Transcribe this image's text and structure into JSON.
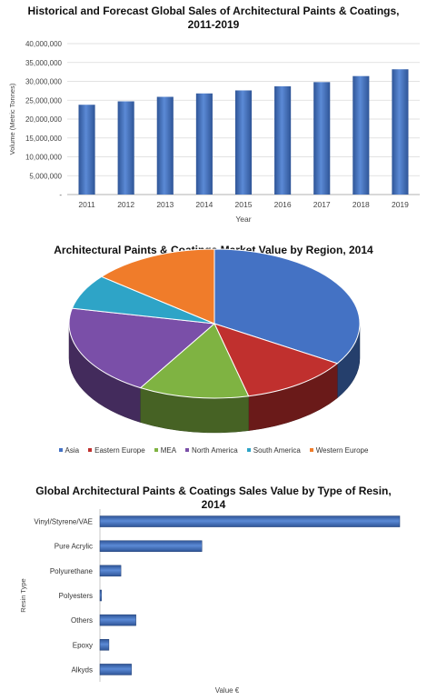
{
  "chart_data": [
    {
      "type": "bar",
      "orientation": "vertical",
      "title_line1": "Historical and Forecast Global Sales of Architectural Paints & Coatings,",
      "title_line2": "2011-2019",
      "xlabel": "Year",
      "ylabel": "Volume (Metric Tonnes)",
      "ylim": [
        0,
        40000000
      ],
      "yticks": [
        "40,000,000",
        "35,000,000",
        "30,000,000",
        "25,000,000",
        "20,000,000",
        "15,000,000",
        "10,000,000",
        "5,000,000",
        "-"
      ],
      "categories": [
        "2011",
        "2012",
        "2013",
        "2014",
        "2015",
        "2016",
        "2017",
        "2018",
        "2019"
      ],
      "values": [
        23800000,
        24700000,
        25900000,
        26800000,
        27600000,
        28700000,
        29800000,
        31400000,
        33200000
      ],
      "color": "#4472c4",
      "grid": true
    },
    {
      "type": "pie",
      "title": "Architectural Paints & Coatings Market Value by Region, 2014",
      "labels": [
        "Asia",
        "Eastern Europe",
        "MEA",
        "North America",
        "South America",
        "Western Europe"
      ],
      "values": [
        36,
        13,
        13,
        21,
        8,
        15
      ],
      "colors": [
        "#4472c4",
        "#c0302e",
        "#7fb342",
        "#7a4fa8",
        "#2ea4c7",
        "#f07c2a"
      ],
      "legend": "bottom"
    },
    {
      "type": "bar",
      "orientation": "horizontal",
      "title_line1": "Global Architectural Paints & Coatings Sales Value by Type of Resin,",
      "title_line2": "2014",
      "xlabel": "Value €",
      "ylabel": "Resin Type",
      "categories": [
        "Vinyl/Styrene/VAE",
        "Pure Acrylic",
        "Polyurethane",
        "Polyesters",
        "Others",
        "Epoxy",
        "Alkyds"
      ],
      "values": [
        100,
        34,
        7,
        0.5,
        12,
        3,
        10.5
      ],
      "xlim": [
        0,
        100
      ],
      "color": "#4472c4"
    }
  ]
}
